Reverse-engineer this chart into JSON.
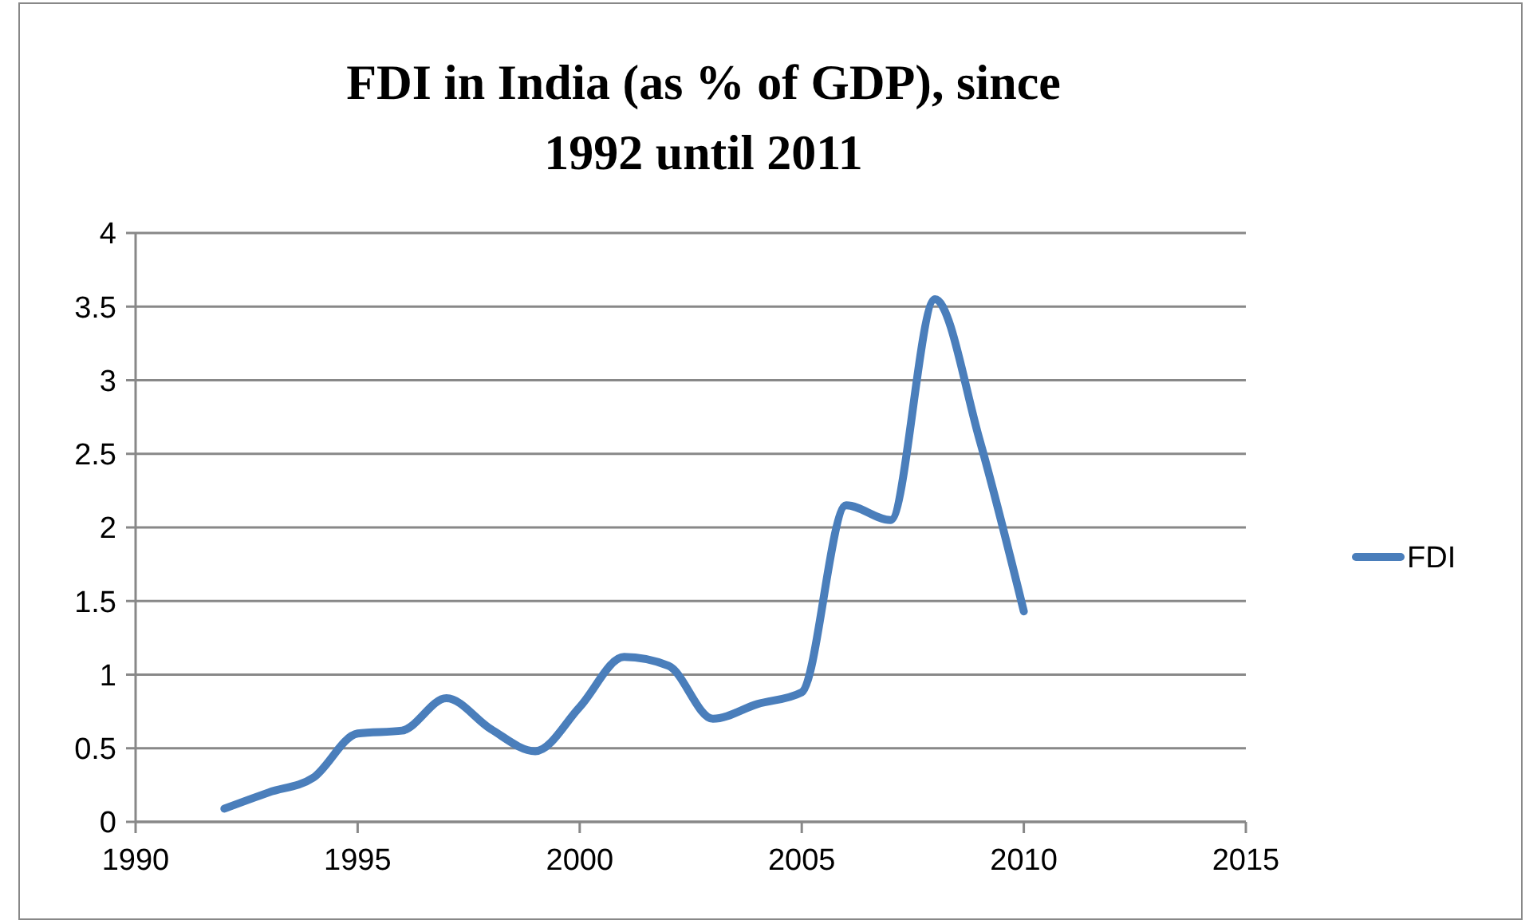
{
  "chart_data": {
    "type": "line",
    "title": "FDI in India (as % of GDP), since 1992 until 2011",
    "x": [
      1992,
      1993,
      1994,
      1995,
      1996,
      1997,
      1998,
      1999,
      2000,
      2001,
      2002,
      2003,
      2004,
      2005,
      2006,
      2007,
      2008,
      2009,
      2010
    ],
    "series": [
      {
        "name": "FDI",
        "color": "#4a7ebb",
        "values": [
          0.09,
          0.2,
          0.3,
          0.6,
          0.62,
          0.84,
          0.63,
          0.48,
          0.78,
          1.12,
          1.06,
          0.7,
          0.8,
          0.88,
          2.15,
          2.05,
          3.55,
          2.6,
          1.43
        ]
      }
    ],
    "xlim": [
      1990,
      2015
    ],
    "xticks": [
      1990,
      1995,
      2000,
      2005,
      2010,
      2015
    ],
    "ylim": [
      0,
      4
    ],
    "yticks": [
      0,
      0.5,
      1,
      1.5,
      2,
      2.5,
      3,
      3.5,
      4
    ],
    "grid": "y",
    "legend": "right",
    "marker": "none",
    "line_style": "solid"
  }
}
